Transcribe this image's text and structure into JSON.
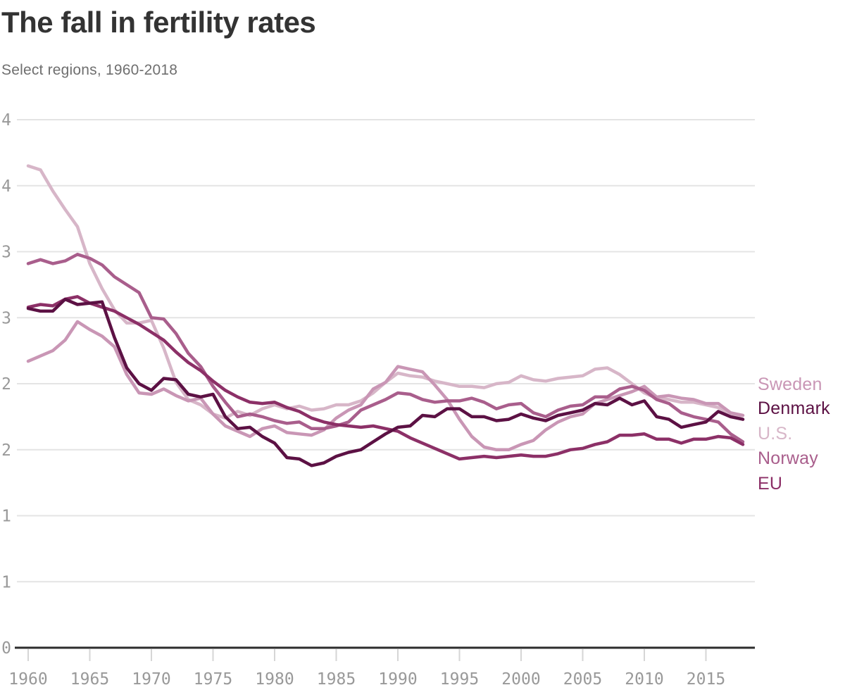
{
  "header": {
    "title": "The fall in fertility rates",
    "subtitle": "Select regions, 1960-2018"
  },
  "chart_data": {
    "type": "line",
    "title": "The fall in fertility rates",
    "subtitle": "Select regions, 1960-2018",
    "xlabel": "",
    "ylabel": "",
    "grid": "horizontal-only",
    "x": [
      1960,
      1961,
      1962,
      1963,
      1964,
      1965,
      1966,
      1967,
      1968,
      1969,
      1970,
      1971,
      1972,
      1973,
      1974,
      1975,
      1976,
      1977,
      1978,
      1979,
      1980,
      1981,
      1982,
      1983,
      1984,
      1985,
      1986,
      1987,
      1988,
      1989,
      1990,
      1991,
      1992,
      1993,
      1994,
      1995,
      1996,
      1997,
      1998,
      1999,
      2000,
      2001,
      2002,
      2003,
      2004,
      2005,
      2006,
      2007,
      2008,
      2009,
      2010,
      2011,
      2012,
      2013,
      2014,
      2015,
      2016,
      2017,
      2018
    ],
    "y_axis": {
      "min": 0,
      "max": 4,
      "tick_step": 0.5,
      "tick_values": [
        4,
        3.5,
        3,
        2.5,
        2,
        1.5,
        1,
        0.5,
        0
      ],
      "tick_labels": [
        "4",
        "4",
        "3",
        "3",
        "2",
        "2",
        "1",
        "1",
        "0"
      ]
    },
    "x_axis": {
      "tick_years": [
        1960,
        1965,
        1970,
        1975,
        1980,
        1985,
        1990,
        1995,
        2000,
        2005,
        2010,
        2015
      ],
      "tick_labels": [
        "1960",
        "1965",
        "1970",
        "1975",
        "1980",
        "1985",
        "1990",
        "1995",
        "2000",
        "2005",
        "2010",
        "2015"
      ]
    },
    "series": [
      {
        "name": "Sweden",
        "color": "#c996b5",
        "values": [
          2.17,
          2.21,
          2.25,
          2.33,
          2.47,
          2.41,
          2.36,
          2.28,
          2.07,
          1.93,
          1.92,
          1.96,
          1.91,
          1.87,
          1.89,
          1.77,
          1.68,
          1.64,
          1.6,
          1.66,
          1.68,
          1.63,
          1.62,
          1.61,
          1.65,
          1.74,
          1.8,
          1.84,
          1.96,
          2.01,
          2.13,
          2.11,
          2.09,
          1.99,
          1.88,
          1.73,
          1.6,
          1.52,
          1.5,
          1.5,
          1.54,
          1.57,
          1.65,
          1.71,
          1.75,
          1.77,
          1.85,
          1.88,
          1.91,
          1.94,
          1.98,
          1.9,
          1.91,
          1.89,
          1.88,
          1.85,
          1.85,
          1.78,
          1.76
        ]
      },
      {
        "name": "Denmark",
        "color": "#5c1144",
        "values": [
          2.57,
          2.55,
          2.55,
          2.64,
          2.6,
          2.61,
          2.62,
          2.35,
          2.12,
          2.0,
          1.95,
          2.04,
          2.03,
          1.92,
          1.9,
          1.92,
          1.75,
          1.66,
          1.67,
          1.6,
          1.55,
          1.44,
          1.43,
          1.38,
          1.4,
          1.45,
          1.48,
          1.5,
          1.56,
          1.62,
          1.67,
          1.68,
          1.76,
          1.75,
          1.81,
          1.81,
          1.75,
          1.75,
          1.72,
          1.73,
          1.77,
          1.74,
          1.72,
          1.76,
          1.78,
          1.8,
          1.85,
          1.84,
          1.89,
          1.84,
          1.87,
          1.75,
          1.73,
          1.67,
          1.69,
          1.71,
          1.79,
          1.75,
          1.73
        ]
      },
      {
        "name": "U.S.",
        "color": "#d7b6c8",
        "values": [
          3.65,
          3.62,
          3.46,
          3.32,
          3.19,
          2.91,
          2.72,
          2.56,
          2.46,
          2.46,
          2.48,
          2.27,
          2.01,
          1.88,
          1.84,
          1.77,
          1.74,
          1.79,
          1.76,
          1.81,
          1.84,
          1.81,
          1.83,
          1.8,
          1.81,
          1.84,
          1.84,
          1.87,
          1.93,
          2.01,
          2.08,
          2.06,
          2.05,
          2.02,
          2.0,
          1.98,
          1.98,
          1.97,
          2.0,
          2.01,
          2.06,
          2.03,
          2.02,
          2.04,
          2.05,
          2.06,
          2.11,
          2.12,
          2.07,
          2.0,
          1.93,
          1.89,
          1.88,
          1.86,
          1.86,
          1.84,
          1.82,
          1.77,
          1.73
        ]
      },
      {
        "name": "Norway",
        "color": "#a95e8c",
        "values": [
          2.91,
          2.94,
          2.91,
          2.93,
          2.98,
          2.95,
          2.9,
          2.81,
          2.75,
          2.69,
          2.5,
          2.49,
          2.38,
          2.23,
          2.13,
          1.98,
          1.86,
          1.75,
          1.77,
          1.75,
          1.72,
          1.7,
          1.71,
          1.66,
          1.66,
          1.68,
          1.71,
          1.8,
          1.84,
          1.88,
          1.93,
          1.92,
          1.88,
          1.86,
          1.87,
          1.87,
          1.89,
          1.86,
          1.81,
          1.84,
          1.85,
          1.78,
          1.75,
          1.8,
          1.83,
          1.84,
          1.9,
          1.9,
          1.96,
          1.98,
          1.95,
          1.88,
          1.85,
          1.78,
          1.75,
          1.73,
          1.71,
          1.62,
          1.56
        ]
      },
      {
        "name": "EU",
        "color": "#8c3067",
        "values": [
          2.58,
          2.6,
          2.59,
          2.64,
          2.66,
          2.61,
          2.58,
          2.55,
          2.5,
          2.45,
          2.39,
          2.33,
          2.24,
          2.16,
          2.1,
          2.02,
          1.95,
          1.9,
          1.86,
          1.85,
          1.86,
          1.82,
          1.79,
          1.74,
          1.71,
          1.69,
          1.68,
          1.67,
          1.68,
          1.66,
          1.64,
          1.59,
          1.55,
          1.51,
          1.47,
          1.43,
          1.44,
          1.45,
          1.44,
          1.45,
          1.46,
          1.45,
          1.45,
          1.47,
          1.5,
          1.51,
          1.54,
          1.56,
          1.61,
          1.61,
          1.62,
          1.58,
          1.58,
          1.55,
          1.58,
          1.58,
          1.6,
          1.59,
          1.54
        ]
      }
    ],
    "legend": {
      "position": "right-of-plot",
      "entries": [
        {
          "label": "Sweden"
        },
        {
          "label": "Denmark"
        },
        {
          "label": "U.S."
        },
        {
          "label": "Norway"
        },
        {
          "label": "EU"
        }
      ]
    },
    "z_order": [
      "U.S.",
      "Sweden",
      "Norway",
      "EU",
      "Denmark"
    ]
  },
  "colors": {
    "title": "#333333",
    "subtitle": "#6f6f6f",
    "tick_label": "#999999",
    "gridline": "#e4e4e4",
    "tick_mark": "#d6d6d6",
    "axis_line": "#2d2d2d",
    "background": "#ffffff"
  }
}
